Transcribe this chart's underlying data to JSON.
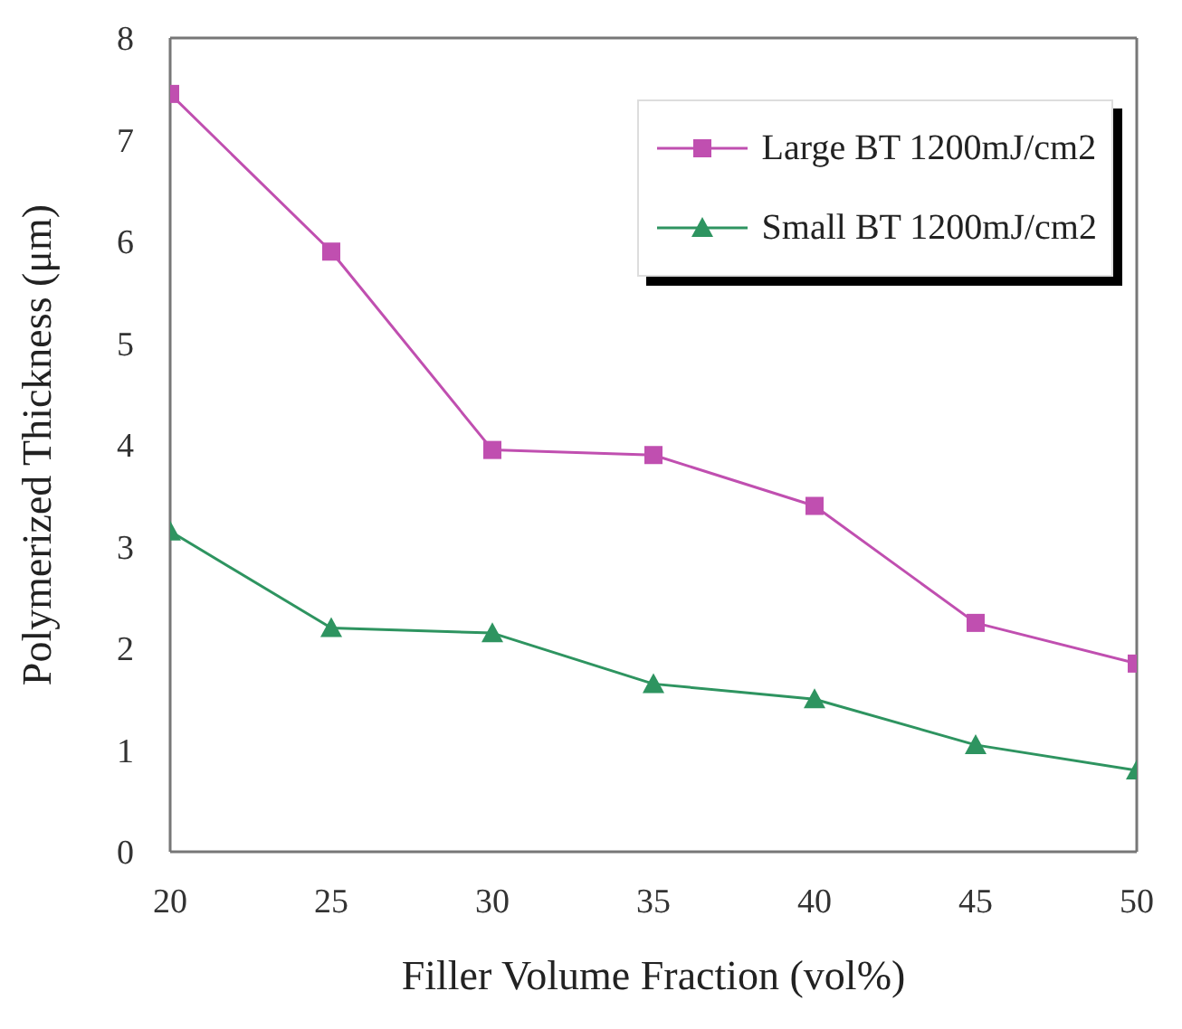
{
  "chart_data": {
    "type": "line",
    "xlabel": "Filler Volume Fraction (vol%)",
    "ylabel": "Polymerized Thickness (μm)",
    "x": [
      20,
      25,
      30,
      35,
      40,
      45,
      50
    ],
    "series": [
      {
        "name": "Large BT 1200mJ/cm2",
        "color": "#c04fb0",
        "marker": "square",
        "values": [
          7.45,
          5.9,
          3.95,
          3.9,
          3.4,
          2.25,
          1.85
        ]
      },
      {
        "name": "Small BT 1200mJ/cm2",
        "color": "#2e9460",
        "marker": "triangle",
        "values": [
          3.15,
          2.2,
          2.15,
          1.65,
          1.5,
          1.05,
          0.8
        ]
      }
    ],
    "xlim": [
      20,
      50
    ],
    "xticks": [
      20,
      25,
      30,
      35,
      40,
      45,
      50
    ],
    "ylim": [
      0,
      8
    ],
    "yticks": [
      0,
      1,
      2,
      3,
      4,
      5,
      6,
      7,
      8
    ],
    "grid": false,
    "legend": "top right",
    "line_style": "solid"
  }
}
